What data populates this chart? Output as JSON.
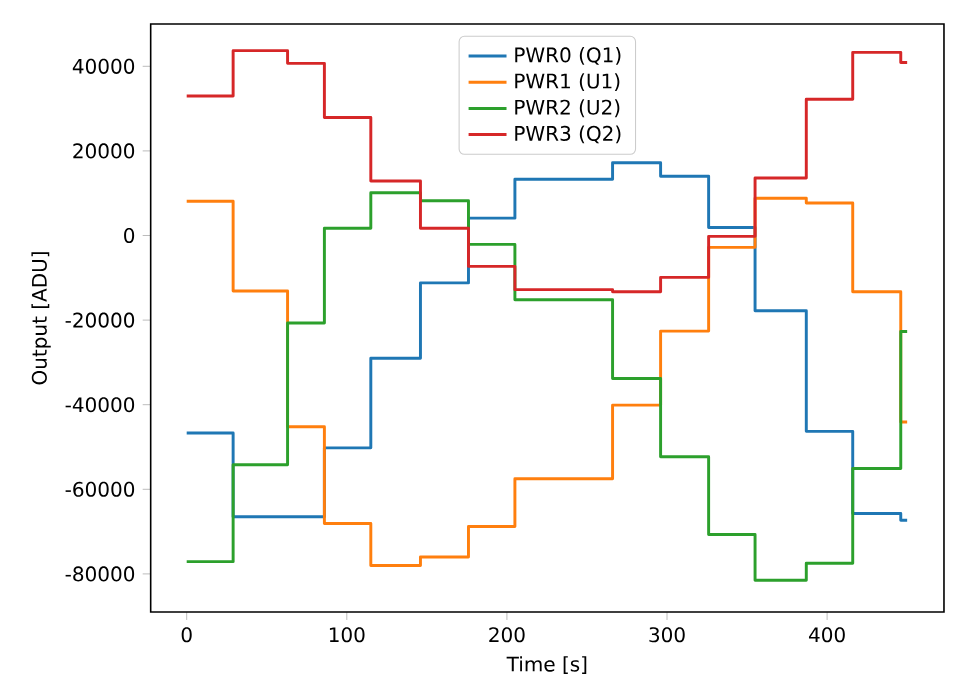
{
  "chart_data": {
    "type": "step",
    "xlabel": "Time [s]",
    "ylabel": "Output [ADU]",
    "x": [
      0,
      29,
      63,
      86,
      115,
      146,
      176,
      205,
      266,
      296,
      326,
      355,
      387,
      416,
      446,
      450
    ],
    "series": [
      {
        "name": "PWR0 (Q1)",
        "color": "#1f77b4",
        "values": [
          -46700,
          -66500,
          -66500,
          -50200,
          -29000,
          -11200,
          4100,
          13300,
          17200,
          14000,
          1900,
          -17800,
          -46300,
          -65700,
          -67300,
          -67300
        ]
      },
      {
        "name": "PWR1 (U1)",
        "color": "#ff7f0e",
        "values": [
          8100,
          -13100,
          -45200,
          -68100,
          -78000,
          -76000,
          -68800,
          -57500,
          -40100,
          -22600,
          -2800,
          8800,
          7700,
          -13300,
          -44100,
          -44100
        ]
      },
      {
        "name": "PWR2 (U2)",
        "color": "#2ca02c",
        "values": [
          -77100,
          -54200,
          -20700,
          1700,
          10100,
          8200,
          -2100,
          -15200,
          -33800,
          -52300,
          -70700,
          -81500,
          -77500,
          -55100,
          -22700,
          -22700
        ]
      },
      {
        "name": "PWR3 (Q2)",
        "color": "#d62728",
        "values": [
          33000,
          43700,
          40700,
          27900,
          12900,
          1700,
          -7300,
          -12800,
          -13300,
          -9900,
          -200,
          13600,
          32200,
          43300,
          40900,
          40900
        ]
      }
    ],
    "xlim": [
      -22.5,
      473
    ],
    "ylim": [
      -89000,
      50000
    ],
    "xticks": [
      0,
      100,
      200,
      300,
      400
    ],
    "yticks": [
      -80000,
      -60000,
      -40000,
      -20000,
      0,
      20000,
      40000
    ],
    "legend": "top",
    "grid": false,
    "marker": "none",
    "line_style": "solid"
  }
}
